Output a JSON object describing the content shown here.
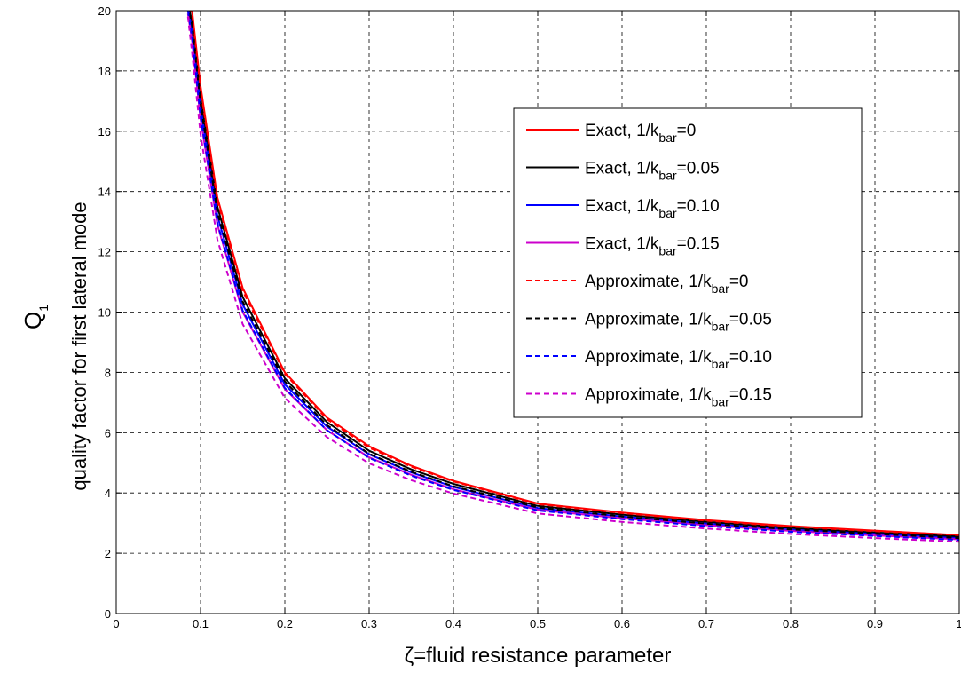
{
  "chart_data": {
    "type": "line",
    "xlabel": "ζ=fluid resistance parameter",
    "ylabel": "quality factor for first lateral mode",
    "ylabel_q": "Q",
    "ylabel_q_sub": "1",
    "xlim": [
      0,
      1
    ],
    "ylim": [
      0,
      20
    ],
    "xticks": [
      0,
      0.1,
      0.2,
      0.3,
      0.4,
      0.5,
      0.6,
      0.7,
      0.8,
      0.9,
      1
    ],
    "yticks": [
      0,
      2,
      4,
      6,
      8,
      10,
      12,
      14,
      16,
      18,
      20
    ],
    "grid": true,
    "legend_position": "top-right",
    "x": [
      0.085,
      0.09,
      0.1,
      0.12,
      0.15,
      0.2,
      0.25,
      0.3,
      0.35,
      0.4,
      0.5,
      0.6,
      0.7,
      0.8,
      0.9,
      1.0
    ],
    "series": [
      {
        "name": "Exact, 1/k_bar=0",
        "prefix": "Exact, 1/k",
        "sub": "bar",
        "suffix": "=0",
        "color": "#ff0000",
        "dash": "solid",
        "values": [
          20.5,
          20.0,
          17.5,
          13.8,
          10.8,
          8.0,
          6.5,
          5.55,
          4.9,
          4.4,
          3.65,
          3.35,
          3.1,
          2.9,
          2.75,
          2.6
        ]
      },
      {
        "name": "Exact, 1/k_bar=0.05",
        "prefix": "Exact, 1/k",
        "sub": "bar",
        "suffix": "=0.05",
        "color": "#000000",
        "dash": "solid",
        "values": [
          20.3,
          19.6,
          17.1,
          13.5,
          10.5,
          7.8,
          6.35,
          5.4,
          4.78,
          4.3,
          3.57,
          3.28,
          3.04,
          2.84,
          2.69,
          2.55
        ]
      },
      {
        "name": "Exact, 1/k_bar=0.10",
        "prefix": "Exact, 1/k",
        "sub": "bar",
        "suffix": "=0.10",
        "color": "#0000ff",
        "dash": "solid",
        "values": [
          20.1,
          19.3,
          16.8,
          13.2,
          10.25,
          7.6,
          6.2,
          5.28,
          4.68,
          4.2,
          3.5,
          3.22,
          2.98,
          2.78,
          2.64,
          2.5
        ]
      },
      {
        "name": "Exact, 1/k_bar=0.15",
        "prefix": "Exact, 1/k",
        "sub": "bar",
        "suffix": "=0.15",
        "color": "#cc00cc",
        "dash": "solid",
        "values": [
          19.9,
          19.0,
          16.4,
          12.9,
          10.0,
          7.45,
          6.08,
          5.18,
          4.6,
          4.12,
          3.44,
          3.16,
          2.93,
          2.74,
          2.59,
          2.46
        ]
      },
      {
        "name": "Approximate, 1/k_bar=0",
        "prefix": "Approximate, 1/k",
        "sub": "bar",
        "suffix": "=0",
        "color": "#ff0000",
        "dash": "dashed",
        "values": [
          20.4,
          19.9,
          17.4,
          13.7,
          10.7,
          7.95,
          6.45,
          5.5,
          4.87,
          4.38,
          3.63,
          3.33,
          3.08,
          2.88,
          2.73,
          2.6
        ]
      },
      {
        "name": "Approximate, 1/k_bar=0.05",
        "prefix": "Approximate, 1/k",
        "sub": "bar",
        "suffix": "=0.05",
        "color": "#000000",
        "dash": "dashed",
        "values": [
          20.2,
          19.5,
          16.9,
          13.3,
          10.35,
          7.7,
          6.25,
          5.3,
          4.7,
          4.22,
          3.52,
          3.22,
          2.98,
          2.79,
          2.64,
          2.5
        ]
      },
      {
        "name": "Approximate, 1/k_bar=0.10",
        "prefix": "Approximate, 1/k",
        "sub": "bar",
        "suffix": "=0.10",
        "color": "#0000ff",
        "dash": "dashed",
        "values": [
          20.0,
          19.1,
          16.5,
          12.95,
          10.05,
          7.48,
          6.08,
          5.16,
          4.57,
          4.1,
          3.42,
          3.13,
          2.9,
          2.71,
          2.57,
          2.44
        ]
      },
      {
        "name": "Approximate, 1/k_bar=0.15",
        "prefix": "Approximate, 1/k",
        "sub": "bar",
        "suffix": "=0.15",
        "color": "#cc00cc",
        "dash": "dashed",
        "values": [
          19.8,
          18.6,
          15.9,
          12.4,
          9.6,
          7.15,
          5.85,
          4.98,
          4.42,
          3.98,
          3.32,
          3.04,
          2.82,
          2.64,
          2.5,
          2.38
        ]
      }
    ]
  }
}
